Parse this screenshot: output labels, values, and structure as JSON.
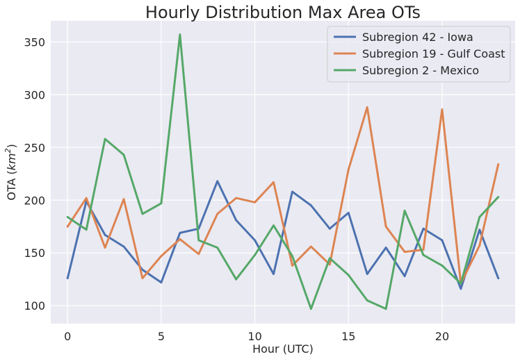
{
  "chart_data": {
    "type": "line",
    "title": "Hourly Distribution Max Area OTs",
    "xlabel": "Hour (UTC)",
    "ylabel": "OTA (km²)",
    "ylabel_plain": "OTA (",
    "ylabel_unit": "km",
    "ylabel_sup": "2",
    "ylabel_close": ")",
    "x": [
      0,
      1,
      2,
      3,
      4,
      5,
      6,
      7,
      8,
      9,
      10,
      11,
      12,
      13,
      14,
      15,
      16,
      17,
      18,
      19,
      20,
      21,
      22,
      23
    ],
    "xlim": [
      -0.9,
      23.9
    ],
    "ylim": [
      83,
      370
    ],
    "xticks": [
      0,
      5,
      10,
      15,
      20
    ],
    "xtick_labels": [
      "0",
      "5",
      "10",
      "15",
      "20"
    ],
    "yticks": [
      100,
      150,
      200,
      250,
      300,
      350
    ],
    "ytick_labels": [
      "100",
      "150",
      "200",
      "250",
      "300",
      "350"
    ],
    "grid": true,
    "legend_position": "top-right",
    "background": "#eaeaf2",
    "series": [
      {
        "name": "Subregion 42 - Iowa",
        "color": "#4c72b0",
        "values": [
          126,
          199,
          167,
          156,
          134,
          122,
          169,
          173,
          218,
          181,
          162,
          130,
          208,
          195,
          173,
          188,
          130,
          155,
          128,
          173,
          162,
          116,
          172,
          126
        ]
      },
      {
        "name": "Subregion 19 - Gulf Coast",
        "color": "#dd8452",
        "values": [
          175,
          202,
          155,
          201,
          126,
          147,
          163,
          149,
          187,
          202,
          198,
          217,
          138,
          156,
          139,
          229,
          288,
          175,
          151,
          153,
          286,
          121,
          157,
          234
        ]
      },
      {
        "name": "Subregion 2 - Mexico",
        "color": "#55a868",
        "values": [
          184,
          172,
          258,
          243,
          187,
          197,
          357,
          162,
          155,
          125,
          148,
          176,
          147,
          97,
          145,
          129,
          105,
          97,
          190,
          148,
          138,
          121,
          184,
          203
        ]
      }
    ]
  }
}
